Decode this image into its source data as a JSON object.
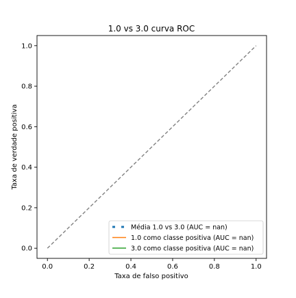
{
  "chart_data": {
    "type": "line",
    "title": "1.0 vs 3.0 curva ROC",
    "xlabel": "Taxa de falso positivo",
    "ylabel": "Taxa de verdade positiva",
    "xlim": [
      -0.05,
      1.05
    ],
    "ylim": [
      -0.05,
      1.05
    ],
    "xticks": [
      "0.0",
      "0.2",
      "0.4",
      "0.6",
      "0.8",
      "1.0"
    ],
    "yticks": [
      "0.0",
      "0.2",
      "0.4",
      "0.6",
      "0.8",
      "1.0"
    ],
    "grid": false,
    "legend_position": "lower-right",
    "reference_line": {
      "x": [
        0,
        1
      ],
      "y": [
        0,
        1
      ],
      "style": "dashed",
      "color": "#808080"
    },
    "series": [
      {
        "name": "Média 1.0 vs 3.0 (AUC = nan)",
        "style": "dotted",
        "color": "#1f77b4",
        "x": [],
        "y": []
      },
      {
        "name": "1.0 como classe positiva (AUC = nan)",
        "style": "solid",
        "color": "#ff7f0e",
        "x": [],
        "y": []
      },
      {
        "name": "3.0 como classe positiva (AUC = nan)",
        "style": "solid",
        "color": "#2ca02c",
        "x": [],
        "y": []
      }
    ]
  }
}
